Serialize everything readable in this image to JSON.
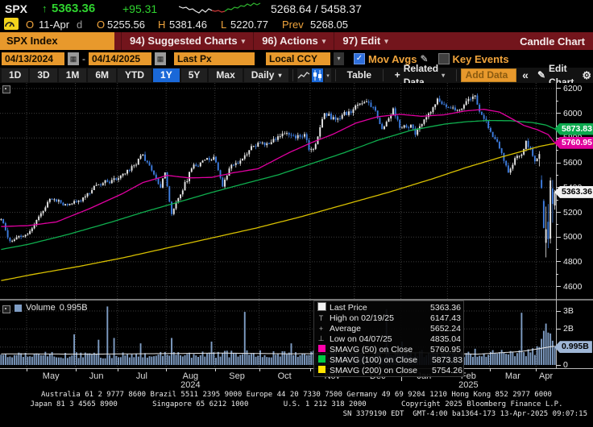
{
  "header": {
    "ticker": "SPX",
    "arrow": "↑",
    "last": "5363.36",
    "change": "+95.31",
    "range": "5268.64 / 5458.37",
    "sparkline": {
      "white": [
        [
          0,
          6
        ],
        [
          5,
          8
        ],
        [
          9,
          7
        ],
        [
          13,
          10
        ],
        [
          17,
          9
        ],
        [
          21,
          12
        ],
        [
          25,
          14
        ],
        [
          29,
          10
        ],
        [
          33,
          13
        ],
        [
          37,
          9
        ],
        [
          41,
          11
        ]
      ],
      "red": [
        [
          41,
          11
        ],
        [
          45,
          12
        ],
        [
          49,
          11
        ],
        [
          53,
          13
        ],
        [
          57,
          12
        ]
      ],
      "green": [
        [
          57,
          12
        ],
        [
          61,
          9
        ],
        [
          65,
          10
        ],
        [
          69,
          7
        ],
        [
          73,
          8
        ],
        [
          77,
          5
        ],
        [
          81,
          6
        ],
        [
          85,
          3
        ],
        [
          89,
          5
        ],
        [
          93,
          2
        ],
        [
          97,
          4
        ],
        [
          101,
          2
        ]
      ]
    },
    "row2": {
      "o1": "O",
      "date": "11-Apr",
      "d": "d",
      "open_label": "O",
      "open": "5255.56",
      "high_label": "H",
      "high": "5381.46",
      "low_label": "L",
      "low": "5220.77",
      "prev_label": "Prev",
      "prev": "5268.05"
    }
  },
  "menubar": {
    "security": "SPX Index",
    "items": [
      {
        "num": "94)",
        "label": "Suggested Charts",
        "caret": true
      },
      {
        "num": "96)",
        "label": "Actions",
        "caret": true
      },
      {
        "num": "97)",
        "label": "Edit",
        "caret": true
      }
    ],
    "right": "Candle Chart"
  },
  "controls": {
    "date_from": "04/13/2024",
    "date_sep": "-",
    "date_to": "04/14/2025",
    "px_type": "Last Px",
    "currency": "Local CCY",
    "mov_avgs_label": "Mov Avgs",
    "key_events_label": "Key Events"
  },
  "toolbar": {
    "ranges": [
      "1D",
      "3D",
      "1M",
      "6M",
      "YTD",
      "1Y",
      "5Y",
      "Max"
    ],
    "selected_range": "1Y",
    "period": "Daily",
    "table_label": "Table",
    "related_label": "Related Data",
    "add_data_placeholder": "Add Data",
    "collapse_label": "«",
    "edit_chart_label": "Edit Chart"
  },
  "icons": {
    "caret": "▾",
    "check": "✓",
    "pencil": "✎",
    "gear": "⚙",
    "calendar": "▦",
    "plus": "+"
  },
  "legend": {
    "rows": [
      {
        "swatch": "#f2f2f2",
        "label": "Last Price",
        "value": "5363.36"
      },
      {
        "glyph": "T",
        "label": "High on 02/19/25",
        "value": "6147.43"
      },
      {
        "glyph": "+",
        "label": "Average",
        "value": "5652.24"
      },
      {
        "glyph": "⊥",
        "label": "Low on 04/07/25",
        "value": "4835.04"
      },
      {
        "swatch": "#ff00aa",
        "label": "SMAVG (50)  on Close",
        "value": "5760.95"
      },
      {
        "swatch": "#00cc44",
        "label": "SMAVG (100)  on Close",
        "value": "5873.83"
      },
      {
        "swatch": "#ffe400",
        "label": "SMAVG (200)  on Close",
        "value": "5754.26"
      }
    ]
  },
  "volume_legend": {
    "label": "Volume",
    "value": "0.995B"
  },
  "chart_data": {
    "type": "candlestick",
    "symbol": "SPX Index",
    "period": "Daily",
    "date_range": [
      "04/13/2024",
      "04/14/2025"
    ],
    "n_days": 251,
    "last_price": 5363.36,
    "average": 5652.24,
    "high_marker": {
      "date": "02/19/25",
      "value": 6147.43,
      "index": 214
    },
    "low_marker": {
      "date": "04/07/25",
      "value": 4835.04,
      "index": 246
    },
    "price_axis": {
      "min": 4500,
      "max": 6245,
      "major_ticks": [
        4600,
        4800,
        5000,
        5200,
        5400,
        5600,
        5800,
        6000,
        6200
      ],
      "minor_step": 100
    },
    "close_anchors": [
      [
        0,
        5145
      ],
      [
        4,
        4967
      ],
      [
        8,
        5010
      ],
      [
        11,
        5018
      ],
      [
        14,
        5070
      ],
      [
        22,
        5308
      ],
      [
        29,
        5267
      ],
      [
        34,
        5283
      ],
      [
        40,
        5354
      ],
      [
        43,
        5421
      ],
      [
        48,
        5447
      ],
      [
        53,
        5475
      ],
      [
        58,
        5537
      ],
      [
        64,
        5667
      ],
      [
        69,
        5505
      ],
      [
        72,
        5399
      ],
      [
        74,
        5522
      ],
      [
        77,
        5186
      ],
      [
        81,
        5344
      ],
      [
        86,
        5554
      ],
      [
        92,
        5625
      ],
      [
        96,
        5648
      ],
      [
        100,
        5408
      ],
      [
        103,
        5554
      ],
      [
        108,
        5618
      ],
      [
        112,
        5702
      ],
      [
        116,
        5762
      ],
      [
        121,
        5751
      ],
      [
        126,
        5815
      ],
      [
        129,
        5841
      ],
      [
        133,
        5797
      ],
      [
        137,
        5832
      ],
      [
        139,
        5705
      ],
      [
        141,
        5712
      ],
      [
        146,
        6001
      ],
      [
        151,
        5949
      ],
      [
        154,
        5987
      ],
      [
        159,
        6032
      ],
      [
        164,
        6090
      ],
      [
        168,
        6051
      ],
      [
        172,
        5872
      ],
      [
        174,
        5931
      ],
      [
        177,
        6040
      ],
      [
        180,
        5882
      ],
      [
        185,
        5909
      ],
      [
        187,
        5827
      ],
      [
        191,
        5950
      ],
      [
        195,
        6049
      ],
      [
        197,
        6119
      ],
      [
        200,
        6071
      ],
      [
        203,
        6041
      ],
      [
        206,
        6026
      ],
      [
        209,
        6068
      ],
      [
        212,
        6115
      ],
      [
        214,
        6144
      ],
      [
        216,
        6013
      ],
      [
        218,
        5955
      ],
      [
        221,
        5850
      ],
      [
        224,
        5770
      ],
      [
        227,
        5615
      ],
      [
        229,
        5521
      ],
      [
        232,
        5638
      ],
      [
        235,
        5667
      ],
      [
        237,
        5777
      ],
      [
        239,
        5712
      ],
      [
        241,
        5612
      ],
      [
        242,
        5633
      ]
    ],
    "candle_overrides": {
      "214": {
        "high": 6147.43
      },
      "243": {
        "open": 5633,
        "close": 5671,
        "high": 5695,
        "low": 5571
      },
      "244": {
        "open": 5462,
        "close": 5396.52,
        "high": 5499,
        "low": 5390
      },
      "245": {
        "open": 5292,
        "close": 5074.08,
        "high": 5306,
        "low": 5069
      },
      "246": {
        "open": 4953,
        "close": 5062.25,
        "high": 5246,
        "low": 4835.04
      },
      "247": {
        "open": 5123,
        "close": 4982.77,
        "high": 5267,
        "low": 4910
      },
      "248": {
        "open": 4987,
        "close": 5456.9,
        "high": 5481,
        "low": 4948
      },
      "249": {
        "open": 5393,
        "close": 5268.05,
        "high": 5461,
        "low": 5115
      },
      "250": {
        "open": 5255.56,
        "close": 5363.36,
        "high": 5381.46,
        "low": 5220.77
      }
    },
    "moving_averages": [
      {
        "name": "SMAVG (200) on Close",
        "window": 200,
        "color": "#d8c000",
        "last": 5754.26,
        "points": [
          [
            0,
            4648
          ],
          [
            15,
            4700
          ],
          [
            35,
            4762
          ],
          [
            55,
            4832
          ],
          [
            75,
            4912
          ],
          [
            95,
            4992
          ],
          [
            115,
            5072
          ],
          [
            135,
            5162
          ],
          [
            155,
            5262
          ],
          [
            175,
            5362
          ],
          [
            195,
            5472
          ],
          [
            210,
            5562
          ],
          [
            225,
            5642
          ],
          [
            235,
            5692
          ],
          [
            243,
            5732
          ],
          [
            248,
            5750
          ],
          [
            250,
            5754.26
          ]
        ]
      },
      {
        "name": "SMAVG (100) on Close",
        "window": 100,
        "color": "#0fae4e",
        "last": 5873.83,
        "points": [
          [
            0,
            4900
          ],
          [
            12,
            4940
          ],
          [
            30,
            5020
          ],
          [
            50,
            5122
          ],
          [
            64,
            5200
          ],
          [
            80,
            5282
          ],
          [
            95,
            5360
          ],
          [
            110,
            5432
          ],
          [
            125,
            5502
          ],
          [
            140,
            5592
          ],
          [
            155,
            5682
          ],
          [
            170,
            5782
          ],
          [
            185,
            5862
          ],
          [
            200,
            5912
          ],
          [
            210,
            5932
          ],
          [
            220,
            5942
          ],
          [
            230,
            5940
          ],
          [
            240,
            5925
          ],
          [
            246,
            5905
          ],
          [
            250,
            5873.83
          ]
        ]
      },
      {
        "name": "SMAVG (50) on Close",
        "window": 50,
        "color": "#e000a0",
        "last": 5760.95,
        "points": [
          [
            0,
            5085
          ],
          [
            12,
            5092
          ],
          [
            25,
            5122
          ],
          [
            40,
            5230
          ],
          [
            55,
            5352
          ],
          [
            64,
            5440
          ],
          [
            75,
            5498
          ],
          [
            85,
            5478
          ],
          [
            95,
            5482
          ],
          [
            105,
            5520
          ],
          [
            116,
            5552
          ],
          [
            130,
            5682
          ],
          [
            140,
            5762
          ],
          [
            150,
            5832
          ],
          [
            160,
            5920
          ],
          [
            170,
            5972
          ],
          [
            180,
            5992
          ],
          [
            190,
            5976
          ],
          [
            200,
            5988
          ],
          [
            210,
            6020
          ],
          [
            218,
            6032
          ],
          [
            225,
            6010
          ],
          [
            230,
            5962
          ],
          [
            236,
            5902
          ],
          [
            242,
            5868
          ],
          [
            247,
            5828
          ],
          [
            250,
            5760.95
          ]
        ]
      }
    ],
    "months": [
      {
        "label": "May",
        "start": 12
      },
      {
        "label": "Jun",
        "start": 34
      },
      {
        "label": "Jul",
        "start": 53
      },
      {
        "label": "Aug",
        "start": 75,
        "year": "2024"
      },
      {
        "label": "Sep",
        "start": 97
      },
      {
        "label": "Oct",
        "start": 117
      },
      {
        "label": "Nov",
        "start": 140
      },
      {
        "label": "Dec",
        "start": 160
      },
      {
        "label": "Jan",
        "start": 181,
        "year_tick": true
      },
      {
        "label": "Feb",
        "start": 202,
        "year": "2025"
      },
      {
        "label": "Mar",
        "start": 221
      },
      {
        "label": "Apr",
        "start": 242
      }
    ],
    "volume": {
      "unit": "B",
      "axis_ticks": [
        {
          "label": "3B",
          "v": 3
        },
        {
          "label": "2B",
          "v": 2
        },
        {
          "label": "0",
          "v": 0
        }
      ],
      "gridlines": [
        1,
        2,
        3
      ],
      "last": 0.995,
      "base_anchors": [
        [
          0,
          0.55
        ],
        [
          30,
          0.52
        ],
        [
          60,
          0.5
        ],
        [
          90,
          0.55
        ],
        [
          120,
          0.6
        ],
        [
          150,
          0.58
        ],
        [
          180,
          0.62
        ],
        [
          210,
          0.55
        ],
        [
          235,
          0.65
        ],
        [
          250,
          0.9
        ]
      ],
      "spikes": [
        [
          33,
          1.7
        ],
        [
          44,
          1.4
        ],
        [
          48,
          3.25
        ],
        [
          51,
          1.5
        ],
        [
          63,
          1.2
        ],
        [
          77,
          1.5
        ],
        [
          95,
          1.3
        ],
        [
          110,
          2.95
        ],
        [
          131,
          1.2
        ],
        [
          160,
          1.1
        ],
        [
          174,
          3.1
        ],
        [
          181,
          1.3
        ],
        [
          214,
          0.9
        ],
        [
          235,
          2.9
        ],
        [
          243,
          1.0
        ],
        [
          244,
          1.45
        ],
        [
          245,
          1.9
        ],
        [
          246,
          2.3
        ],
        [
          247,
          1.8
        ],
        [
          248,
          1.75
        ],
        [
          249,
          1.35
        ],
        [
          250,
          0.995
        ]
      ],
      "ma_anchors": [
        [
          0,
          0.62
        ],
        [
          40,
          0.6
        ],
        [
          70,
          0.63
        ],
        [
          100,
          0.66
        ],
        [
          130,
          0.62
        ],
        [
          160,
          0.65
        ],
        [
          190,
          0.68
        ],
        [
          215,
          0.6
        ],
        [
          235,
          0.75
        ],
        [
          245,
          0.95
        ],
        [
          250,
          1.05
        ]
      ]
    },
    "badges": [
      {
        "text": "5873.83",
        "bg": "#0ca94e",
        "fg": "#ffffff",
        "panel": "price",
        "v": 5873.83
      },
      {
        "text": "5760.95",
        "bg": "#e0009c",
        "fg": "#ffffff",
        "panel": "price",
        "v": 5760.95
      },
      {
        "text": "5363.36",
        "bg": "#f2f2f2",
        "fg": "#000000",
        "panel": "price",
        "v": 5363.36
      },
      {
        "text": "0.995B",
        "bg": "#9fb6d6",
        "fg": "#000000",
        "panel": "volume",
        "v": 0.995
      }
    ],
    "colors": {
      "up": "#e8e8e8",
      "down": "#3e7de0",
      "volume_bar": "#7f9dc4",
      "volume_ma": "#e8e8e8",
      "grid": "#3c3c3c"
    }
  },
  "footer": {
    "line1": "Australia 61 2 9777 8600 Brazil 5511 2395 9000 Europe 44 20 7330 7500 Germany 49 69 9204 1210 Hong Kong 852 2977 6000",
    "line2": "Japan 81 3 4565 8900        Singapore 65 6212 1000        U.S. 1 212 318 2000        Copyright 2025 Bloomberg Finance L.P.",
    "line3": "SN 3379190 EDT  GMT-4:00 ba1364-173 13-Apr-2025 09:07:15"
  }
}
